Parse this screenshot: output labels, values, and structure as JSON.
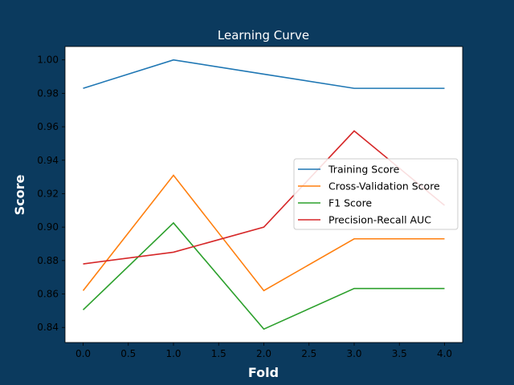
{
  "chart_data": {
    "type": "line",
    "title": "Learning Curve",
    "xlabel": "Fold",
    "ylabel": "Score",
    "x": [
      0,
      1,
      2,
      3,
      4
    ],
    "xlim": [
      -0.2,
      4.2
    ],
    "ylim": [
      0.831,
      1.008
    ],
    "xticks": [
      0.0,
      0.5,
      1.0,
      1.5,
      2.0,
      2.5,
      3.0,
      3.5,
      4.0
    ],
    "yticks": [
      0.84,
      0.86,
      0.88,
      0.9,
      0.92,
      0.94,
      0.96,
      0.98,
      1.0
    ],
    "grid": false,
    "legend_position": "center-right",
    "series": [
      {
        "name": "Training Score",
        "color": "#1f77b4",
        "values": [
          0.983,
          1.0,
          0.9915,
          0.983,
          0.983
        ]
      },
      {
        "name": "Cross-Validation Score",
        "color": "#ff7f0e",
        "values": [
          0.862,
          0.931,
          0.862,
          0.893,
          0.893
        ]
      },
      {
        "name": "F1 Score",
        "color": "#2ca02c",
        "values": [
          0.8505,
          0.9025,
          0.839,
          0.8633,
          0.8633
        ]
      },
      {
        "name": "Precision-Recall AUC",
        "color": "#d62728",
        "values": [
          0.878,
          0.885,
          0.9,
          0.9575,
          0.913
        ]
      }
    ]
  }
}
